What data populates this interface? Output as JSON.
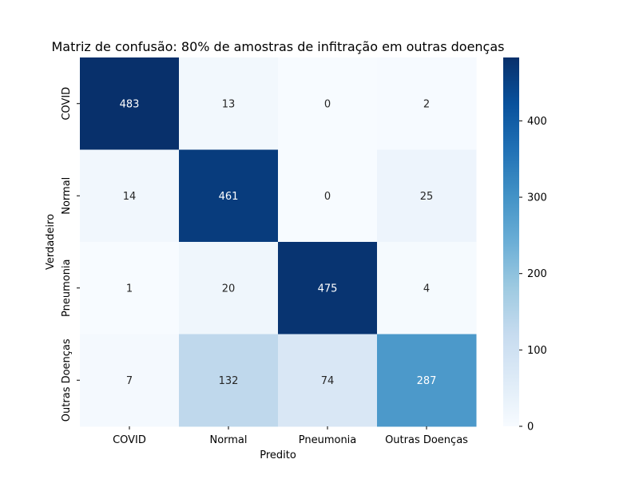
{
  "chart_data": {
    "type": "heatmap",
    "title": "Matriz de confusão: 80% de amostras de infitração em outras doenças",
    "xlabel": "Predito",
    "ylabel": "Verdadeiro",
    "x_categories": [
      "COVID",
      "Normal",
      "Pneumonia",
      "Outras Doenças"
    ],
    "y_categories": [
      "COVID",
      "Normal",
      "Pneumonia",
      "Outras Doenças"
    ],
    "values": [
      [
        483,
        13,
        0,
        2
      ],
      [
        14,
        461,
        0,
        25
      ],
      [
        1,
        20,
        475,
        4
      ],
      [
        7,
        132,
        74,
        287
      ]
    ],
    "colorbar": {
      "range": [
        0,
        483
      ],
      "ticks": [
        0,
        100,
        200,
        300,
        400
      ]
    },
    "colormap": "Blues",
    "colors": {
      "low": "#f7fbff",
      "high": "#08306b"
    }
  }
}
